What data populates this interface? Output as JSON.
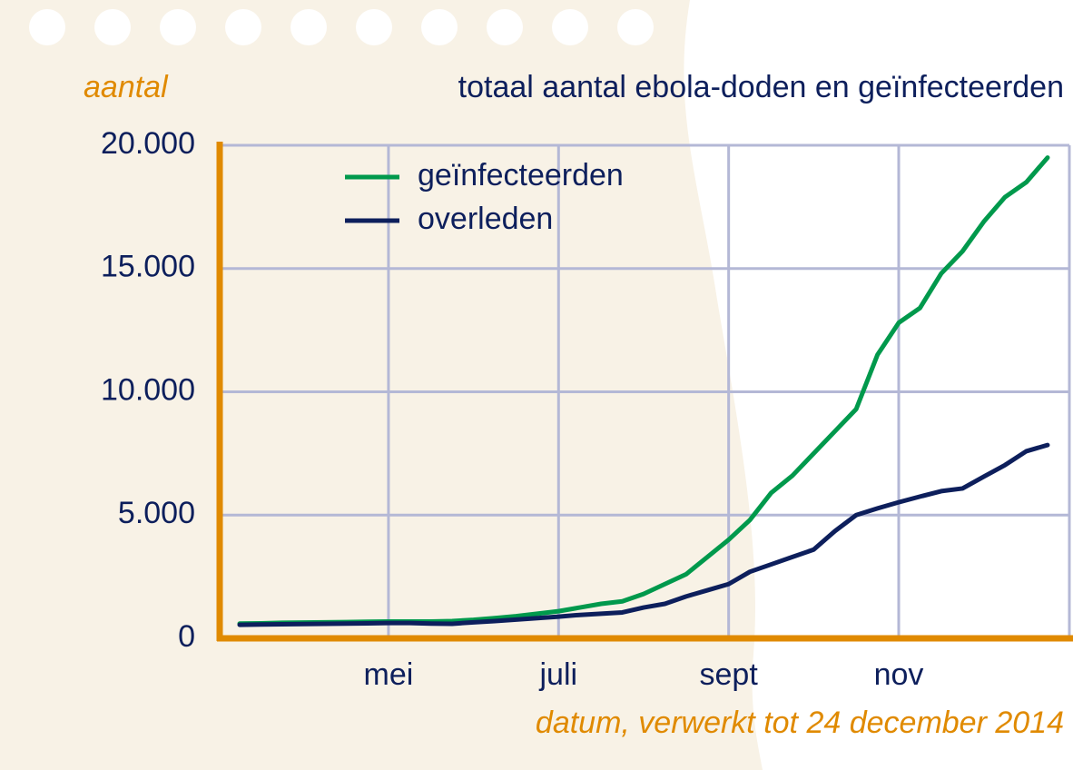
{
  "chart_data": {
    "type": "line",
    "title": "totaal aantal ebola-doden en geïnfecteerden",
    "y_label": "aantal",
    "x_label": "datum, verwerkt tot 24 december 2014",
    "categories": [
      null,
      null,
      null,
      null,
      null,
      null,
      null,
      "mei",
      null,
      null,
      null,
      null,
      null,
      null,
      null,
      "juli",
      null,
      null,
      null,
      null,
      null,
      null,
      null,
      "sept",
      null,
      null,
      null,
      null,
      null,
      null,
      null,
      "nov",
      null,
      null,
      null,
      null,
      null,
      null,
      null
    ],
    "series": [
      {
        "name": "geïnfecteerden",
        "color": "#00994c",
        "values": [
          600,
          610,
          630,
          640,
          650,
          660,
          670,
          680,
          680,
          680,
          700,
          750,
          820,
          900,
          1000,
          1100,
          1250,
          1400,
          1500,
          1800,
          2200,
          2600,
          3300,
          4000,
          4800,
          5900,
          6600,
          7500,
          8400,
          9300,
          11500,
          12800,
          13400,
          14800,
          15700,
          16900,
          17900,
          18500,
          19500
        ]
      },
      {
        "name": "overleden",
        "color": "#0d1f5c",
        "values": [
          550,
          560,
          570,
          580,
          590,
          600,
          610,
          620,
          620,
          600,
          590,
          650,
          700,
          760,
          820,
          880,
          950,
          1000,
          1050,
          1250,
          1400,
          1700,
          1950,
          2200,
          2700,
          3000,
          3300,
          3600,
          4350,
          5000,
          5270,
          5520,
          5750,
          5970,
          6080,
          6560,
          7030,
          7590,
          7840
        ]
      }
    ],
    "ylim": [
      0,
      20000
    ],
    "yticks": [
      0,
      {
        "value": 5000,
        "label": "5.000"
      },
      {
        "value": 10000,
        "label": "10.000"
      },
      {
        "value": 15000,
        "label": "15.000"
      },
      {
        "value": 20000,
        "label": "20.000"
      }
    ],
    "grid": true,
    "legend": "top-left",
    "axis_color": "#e08a00"
  }
}
